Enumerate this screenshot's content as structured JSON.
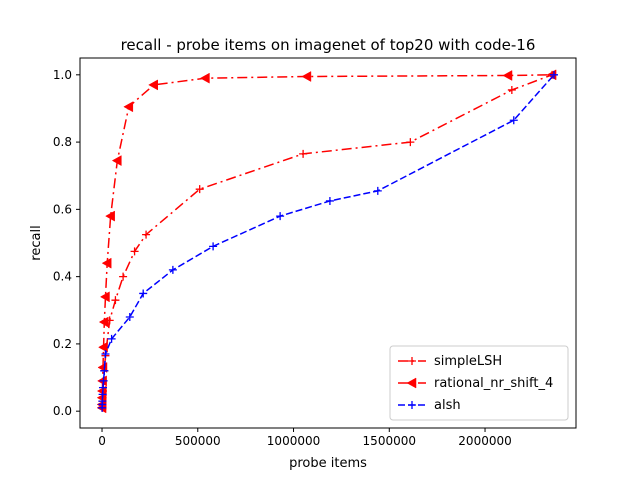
{
  "chart_data": {
    "type": "line",
    "title": "recall - probe items on imagenet of top20 with code-16",
    "xlabel": "probe items",
    "ylabel": "recall",
    "xlim": [
      -115000,
      2475000
    ],
    "ylim": [
      -0.05,
      1.05
    ],
    "x_ticks": [
      0,
      500000,
      1000000,
      1500000,
      2000000
    ],
    "x_tick_labels": [
      "0",
      "500000",
      "1000000",
      "1500000",
      "2000000"
    ],
    "y_ticks": [
      0.0,
      0.2,
      0.4,
      0.6,
      0.8,
      1.0
    ],
    "y_tick_labels": [
      "0.0",
      "0.2",
      "0.4",
      "0.6",
      "0.8",
      "1.0"
    ],
    "grid": false,
    "legend_position": "lower-right",
    "series": [
      {
        "name": "simpleLSH",
        "color": "#ff0000",
        "linestyle": "dashdot",
        "marker": "plus",
        "points": [
          [
            500,
            0.01
          ],
          [
            1000,
            0.02
          ],
          [
            2000,
            0.03
          ],
          [
            3000,
            0.04
          ],
          [
            5000,
            0.06
          ],
          [
            8000,
            0.09
          ],
          [
            12000,
            0.12
          ],
          [
            18000,
            0.165
          ],
          [
            40000,
            0.27
          ],
          [
            70000,
            0.33
          ],
          [
            110000,
            0.4
          ],
          [
            170000,
            0.475
          ],
          [
            230000,
            0.525
          ],
          [
            510000,
            0.66
          ],
          [
            1050000,
            0.765
          ],
          [
            1610000,
            0.8
          ],
          [
            2140000,
            0.955
          ],
          [
            2350000,
            1.0
          ]
        ]
      },
      {
        "name": "rational_nr_shift_4",
        "color": "#ff0000",
        "linestyle": "dashdot",
        "marker": "triangle-left",
        "points": [
          [
            200,
            0.01
          ],
          [
            500,
            0.02
          ],
          [
            1000,
            0.04
          ],
          [
            2000,
            0.06
          ],
          [
            3000,
            0.09
          ],
          [
            5000,
            0.13
          ],
          [
            8000,
            0.19
          ],
          [
            12000,
            0.265
          ],
          [
            18000,
            0.34
          ],
          [
            27000,
            0.44
          ],
          [
            45000,
            0.58
          ],
          [
            80000,
            0.745
          ],
          [
            140000,
            0.905
          ],
          [
            270000,
            0.97
          ],
          [
            540000,
            0.99
          ],
          [
            1070000,
            0.995
          ],
          [
            2120000,
            0.998
          ],
          [
            2350000,
            1.0
          ]
        ]
      },
      {
        "name": "alsh",
        "color": "#0000ff",
        "linestyle": "dashed",
        "marker": "plus",
        "points": [
          [
            500,
            0.01
          ],
          [
            1000,
            0.02
          ],
          [
            2000,
            0.03
          ],
          [
            3000,
            0.05
          ],
          [
            5000,
            0.07
          ],
          [
            8000,
            0.09
          ],
          [
            12000,
            0.12
          ],
          [
            18000,
            0.17
          ],
          [
            50000,
            0.215
          ],
          [
            145000,
            0.28
          ],
          [
            215000,
            0.35
          ],
          [
            370000,
            0.42
          ],
          [
            580000,
            0.49
          ],
          [
            930000,
            0.58
          ],
          [
            1190000,
            0.625
          ],
          [
            1440000,
            0.655
          ],
          [
            2150000,
            0.865
          ],
          [
            2360000,
            1.0
          ]
        ]
      }
    ]
  }
}
